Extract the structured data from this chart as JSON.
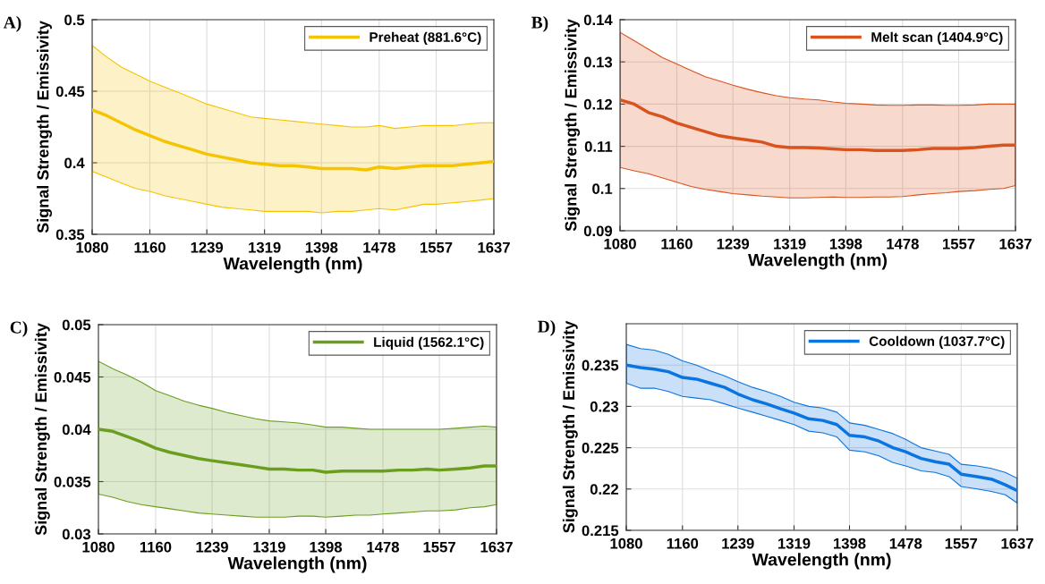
{
  "chart_data": [
    {
      "type": "line",
      "title": "A)",
      "xlabel": "Wavelength (nm)",
      "ylabel": "Signal Strength / Emissivity",
      "legend": "top right",
      "grid": true,
      "x": [
        1080,
        1100,
        1120,
        1140,
        1160,
        1180,
        1200,
        1220,
        1239,
        1260,
        1280,
        1300,
        1319,
        1340,
        1360,
        1380,
        1398,
        1420,
        1440,
        1460,
        1478,
        1500,
        1520,
        1540,
        1557,
        1580,
        1600,
        1620,
        1637
      ],
      "xlim": [
        1080,
        1637
      ],
      "xticks": [
        1080,
        1160,
        1239,
        1319,
        1398,
        1478,
        1557,
        1637
      ],
      "ylim": [
        0.35,
        0.5
      ],
      "yticks": [
        0.35,
        0.4,
        0.45,
        0.5
      ],
      "series": [
        {
          "name": "Preheat (881.6°C)",
          "color": "#f5c400",
          "values": [
            0.437,
            0.433,
            0.428,
            0.423,
            0.419,
            0.415,
            0.412,
            0.409,
            0.406,
            0.404,
            0.402,
            0.4,
            0.399,
            0.398,
            0.398,
            0.397,
            0.396,
            0.396,
            0.396,
            0.395,
            0.397,
            0.396,
            0.397,
            0.398,
            0.398,
            0.398,
            0.399,
            0.4,
            0.401
          ],
          "upper": [
            0.482,
            0.474,
            0.467,
            0.462,
            0.457,
            0.453,
            0.449,
            0.445,
            0.441,
            0.438,
            0.435,
            0.432,
            0.431,
            0.43,
            0.429,
            0.428,
            0.427,
            0.426,
            0.425,
            0.425,
            0.426,
            0.424,
            0.425,
            0.426,
            0.426,
            0.426,
            0.427,
            0.428,
            0.428
          ],
          "lower": [
            0.394,
            0.39,
            0.386,
            0.382,
            0.38,
            0.377,
            0.375,
            0.373,
            0.371,
            0.369,
            0.368,
            0.367,
            0.366,
            0.366,
            0.366,
            0.366,
            0.365,
            0.366,
            0.366,
            0.367,
            0.368,
            0.367,
            0.369,
            0.371,
            0.371,
            0.372,
            0.373,
            0.374,
            0.375
          ]
        }
      ]
    },
    {
      "type": "line",
      "title": "B)",
      "xlabel": "Wavelength (nm)",
      "ylabel": "Signal Strength / Emissivity",
      "legend": "top right",
      "grid": true,
      "x": [
        1080,
        1100,
        1120,
        1140,
        1160,
        1180,
        1200,
        1220,
        1239,
        1260,
        1280,
        1300,
        1319,
        1340,
        1360,
        1380,
        1398,
        1420,
        1440,
        1460,
        1478,
        1500,
        1520,
        1540,
        1557,
        1580,
        1600,
        1620,
        1637
      ],
      "xlim": [
        1080,
        1637
      ],
      "xticks": [
        1080,
        1160,
        1239,
        1319,
        1398,
        1478,
        1557,
        1637
      ],
      "ylim": [
        0.09,
        0.14
      ],
      "yticks": [
        0.09,
        0.1,
        0.11,
        0.12,
        0.13,
        0.14
      ],
      "series": [
        {
          "name": "Melt scan (1404.9°C)",
          "color": "#d9531e",
          "values": [
            0.121,
            0.12,
            0.118,
            0.117,
            0.1155,
            0.1145,
            0.1135,
            0.1125,
            0.112,
            0.1115,
            0.111,
            0.11,
            0.1097,
            0.1097,
            0.1096,
            0.1094,
            0.1092,
            0.1092,
            0.109,
            0.109,
            0.109,
            0.1092,
            0.1095,
            0.1095,
            0.1095,
            0.1097,
            0.11,
            0.1103,
            0.1103
          ],
          "upper": [
            0.137,
            0.135,
            0.133,
            0.131,
            0.1295,
            0.128,
            0.1265,
            0.1255,
            0.1245,
            0.1235,
            0.1227,
            0.122,
            0.1215,
            0.1212,
            0.121,
            0.1205,
            0.1202,
            0.12,
            0.1198,
            0.1197,
            0.1197,
            0.1198,
            0.1198,
            0.1197,
            0.1197,
            0.1198,
            0.12,
            0.12,
            0.12
          ],
          "lower": [
            0.105,
            0.1042,
            0.1035,
            0.1025,
            0.1015,
            0.1005,
            0.0998,
            0.0993,
            0.0988,
            0.0985,
            0.0982,
            0.098,
            0.0978,
            0.0978,
            0.0979,
            0.098,
            0.0979,
            0.0979,
            0.098,
            0.098,
            0.0981,
            0.0985,
            0.0988,
            0.099,
            0.0993,
            0.0995,
            0.0998,
            0.1,
            0.1007
          ]
        }
      ]
    },
    {
      "type": "line",
      "title": "C)",
      "xlabel": "Wavelength (nm)",
      "ylabel": "Signal Strength / Emissivity",
      "legend": "top right",
      "grid": true,
      "x": [
        1080,
        1100,
        1120,
        1140,
        1160,
        1180,
        1200,
        1220,
        1239,
        1260,
        1280,
        1300,
        1319,
        1340,
        1360,
        1380,
        1398,
        1420,
        1440,
        1460,
        1478,
        1500,
        1520,
        1540,
        1557,
        1580,
        1600,
        1620,
        1637
      ],
      "xlim": [
        1080,
        1637
      ],
      "xticks": [
        1080,
        1160,
        1239,
        1319,
        1398,
        1478,
        1557,
        1637
      ],
      "ylim": [
        0.03,
        0.05
      ],
      "yticks": [
        0.03,
        0.035,
        0.04,
        0.045,
        0.05
      ],
      "series": [
        {
          "name": "Liquid (1562.1°C)",
          "color": "#6b9e1f",
          "values": [
            0.04,
            0.0398,
            0.0393,
            0.0388,
            0.0382,
            0.0378,
            0.0375,
            0.0372,
            0.037,
            0.0368,
            0.0366,
            0.0364,
            0.0362,
            0.0362,
            0.0361,
            0.0361,
            0.0359,
            0.036,
            0.036,
            0.036,
            0.036,
            0.0361,
            0.0361,
            0.0362,
            0.0361,
            0.0362,
            0.0363,
            0.0365,
            0.0365
          ],
          "upper": [
            0.0465,
            0.0458,
            0.0452,
            0.0445,
            0.0437,
            0.0432,
            0.0427,
            0.0423,
            0.042,
            0.0416,
            0.0413,
            0.041,
            0.0408,
            0.0407,
            0.0406,
            0.0404,
            0.0402,
            0.0402,
            0.0401,
            0.04,
            0.04,
            0.04,
            0.04,
            0.04,
            0.04,
            0.0401,
            0.0402,
            0.0403,
            0.0402
          ],
          "lower": [
            0.0338,
            0.0335,
            0.0331,
            0.0328,
            0.0326,
            0.0324,
            0.0322,
            0.032,
            0.0319,
            0.0318,
            0.0317,
            0.0316,
            0.0316,
            0.0316,
            0.0317,
            0.0317,
            0.0316,
            0.0317,
            0.0318,
            0.0318,
            0.0319,
            0.032,
            0.0321,
            0.0322,
            0.0322,
            0.0323,
            0.0325,
            0.0326,
            0.0328
          ]
        }
      ]
    },
    {
      "type": "line",
      "title": "D)",
      "xlabel": "Wavelength (nm)",
      "ylabel": "Signal Strength / Emissivity",
      "legend": "top right",
      "grid": true,
      "x": [
        1080,
        1100,
        1120,
        1140,
        1160,
        1180,
        1200,
        1220,
        1239,
        1260,
        1280,
        1300,
        1319,
        1340,
        1360,
        1380,
        1398,
        1420,
        1440,
        1460,
        1478,
        1500,
        1520,
        1540,
        1557,
        1580,
        1600,
        1620,
        1637
      ],
      "xlim": [
        1080,
        1637
      ],
      "xticks": [
        1080,
        1160,
        1239,
        1319,
        1398,
        1478,
        1557,
        1637
      ],
      "ylim": [
        0.215,
        0.24
      ],
      "yticks": [
        0.215,
        0.22,
        0.225,
        0.23,
        0.235
      ],
      "series": [
        {
          "name": "Cooldown (1037.7°C)",
          "color": "#0a74e0",
          "values": [
            0.235,
            0.2347,
            0.2345,
            0.2342,
            0.2335,
            0.2333,
            0.2328,
            0.2323,
            0.2315,
            0.2308,
            0.2303,
            0.2297,
            0.2292,
            0.2285,
            0.2283,
            0.2278,
            0.2265,
            0.2263,
            0.2258,
            0.225,
            0.2245,
            0.2237,
            0.2233,
            0.223,
            0.2218,
            0.2215,
            0.2212,
            0.2205,
            0.2198
          ],
          "upper": [
            0.2375,
            0.237,
            0.2368,
            0.2363,
            0.2355,
            0.235,
            0.2343,
            0.2337,
            0.233,
            0.2323,
            0.2318,
            0.2312,
            0.2305,
            0.23,
            0.2298,
            0.2293,
            0.228,
            0.2277,
            0.2272,
            0.2267,
            0.226,
            0.225,
            0.2246,
            0.2242,
            0.223,
            0.2228,
            0.2225,
            0.222,
            0.2213
          ],
          "lower": [
            0.2328,
            0.2322,
            0.2322,
            0.2318,
            0.2312,
            0.231,
            0.2308,
            0.2303,
            0.2298,
            0.2293,
            0.2288,
            0.2283,
            0.2278,
            0.227,
            0.2268,
            0.2263,
            0.2247,
            0.2245,
            0.224,
            0.2232,
            0.2228,
            0.2222,
            0.222,
            0.2215,
            0.2203,
            0.22,
            0.2197,
            0.2193,
            0.2183
          ]
        }
      ]
    }
  ]
}
